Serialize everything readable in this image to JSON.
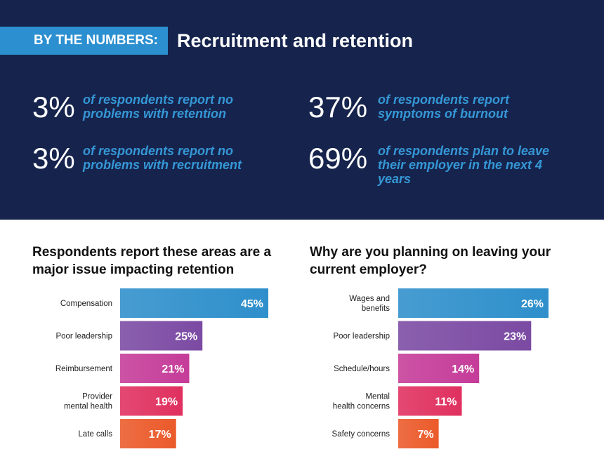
{
  "header": {
    "badge": "BY THE NUMBERS:",
    "title": "Recruitment and retention"
  },
  "stats": [
    {
      "number": "3%",
      "text": "of respondents report no problems with retention"
    },
    {
      "number": "3%",
      "text": "of respondents report no problems with recruitment"
    },
    {
      "number": "37%",
      "text": "of respondents report symptoms of burnout"
    },
    {
      "number": "69%",
      "text": "of respondents plan to leave their employer in the next 4 years"
    }
  ],
  "colors": {
    "header_bg": "#16244d",
    "accent_blue": "#2b8fd0",
    "bar_colors": [
      "#2e8fcb",
      "#7b4aa3",
      "#c53c99",
      "#e0305f",
      "#eb5a2a"
    ]
  },
  "chart_data": [
    {
      "type": "bar",
      "orientation": "horizontal",
      "title": "Respondents report these areas are a major issue impacting retention",
      "categories": [
        "Compensation",
        "Poor leadership",
        "Reimbursement",
        "Provider mental health",
        "Late calls"
      ],
      "values": [
        45,
        25,
        21,
        19,
        17
      ],
      "value_labels": [
        "45%",
        "25%",
        "21%",
        "19%",
        "17%"
      ],
      "unit": "%"
    },
    {
      "type": "bar",
      "orientation": "horizontal",
      "title": "Why are you planning on leaving your current employer?",
      "categories": [
        "Wages and benefits",
        "Poor leadership",
        "Schedule/hours",
        "Mental health concerns",
        "Safety concerns"
      ],
      "values": [
        26,
        23,
        14,
        11,
        7
      ],
      "value_labels": [
        "26%",
        "23%",
        "14%",
        "11%",
        "7%"
      ],
      "unit": "%"
    }
  ]
}
